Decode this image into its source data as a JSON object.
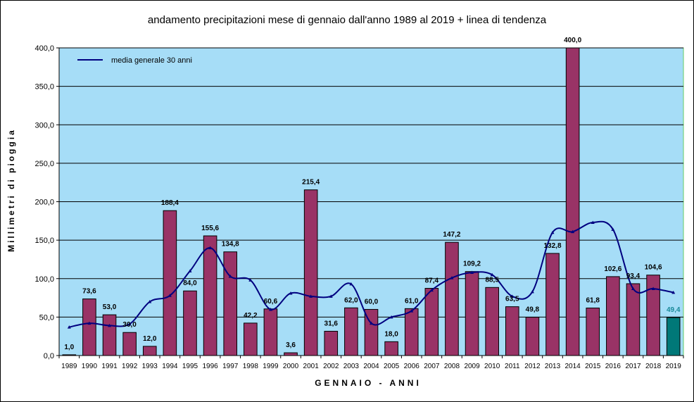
{
  "chart_data": {
    "type": "bar",
    "title": "andamento precipitazioni mese di gennaio dall'anno 1989 al 2019 + linea di tendenza",
    "xlabel": "GENNAIO - ANNI",
    "ylabel": "Millimetri di pioggia",
    "ylim": [
      0,
      400
    ],
    "y_ticks": [
      "0,0",
      "50,0",
      "100,0",
      "150,0",
      "200,0",
      "250,0",
      "300,0",
      "350,0",
      "400,0"
    ],
    "grid": true,
    "legend_position": "top-left",
    "categories": [
      "1989",
      "1990",
      "1991",
      "1992",
      "1993",
      "1994",
      "1995",
      "1996",
      "1997",
      "1998",
      "1999",
      "2000",
      "2001",
      "2002",
      "2003",
      "2004",
      "2005",
      "2006",
      "2007",
      "2008",
      "2009",
      "2010",
      "2011",
      "2012",
      "2013",
      "2014",
      "2015",
      "2016",
      "2017",
      "2018",
      "2019"
    ],
    "series": [
      {
        "values": [
          1.0,
          73.6,
          53.0,
          30.0,
          12.0,
          188.4,
          84.0,
          155.6,
          134.8,
          42.2,
          60.6,
          3.6,
          215.4,
          31.6,
          62.0,
          60.0,
          18.0,
          61.0,
          87.4,
          147.2,
          109.2,
          88.5,
          63.5,
          49.8,
          132.8,
          400.0,
          61.8,
          102.6,
          93.4,
          104.6,
          49.4
        ],
        "labels": [
          "1,0",
          "73,6",
          "53,0",
          "30,0",
          "12,0",
          "188,4",
          "84,0",
          "155,6",
          "134,8",
          "42,2",
          "60,6",
          "3,6",
          "215,4",
          "31,6",
          "62,0",
          "60,0",
          "18,0",
          "61,0",
          "87,4",
          "147,2",
          "109,2",
          "88,5",
          "63,5",
          "49,8",
          "132,8",
          "400,0",
          "61,8",
          "102,6",
          "93,4",
          "104,6",
          "49,4"
        ]
      },
      {
        "name": "media generale 30 anni",
        "type": "line",
        "values": [
          37,
          42,
          39,
          41,
          70,
          78,
          110,
          140,
          103,
          98,
          60,
          81,
          77,
          77,
          93,
          42,
          50,
          58,
          85,
          101,
          108,
          105,
          77,
          83,
          160,
          161,
          173,
          164,
          87,
          87,
          82
        ]
      }
    ],
    "colors": {
      "bar": "#993366",
      "bar_highlight": "#007878",
      "line": "#000080",
      "plot_bg": "#a6ddf7",
      "plot_border": "#66cc66",
      "grid": "#000000",
      "highlight_label": "#1a8a9a"
    }
  }
}
